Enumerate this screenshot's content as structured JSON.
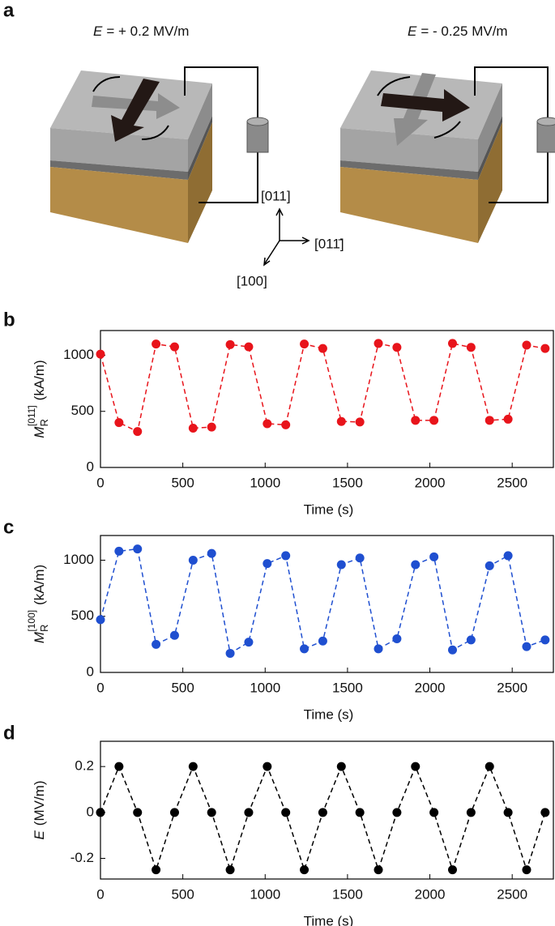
{
  "panel_labels": [
    "a",
    "b",
    "c",
    "d"
  ],
  "panel_a": {
    "left_field": {
      "symbol": "E",
      "text": "= + 0.2 MV/m"
    },
    "right_field": {
      "symbol": "E",
      "text": "= - 0.25 MV/m"
    },
    "axis_labels": [
      "[011]",
      "[011̄]",
      "[100]"
    ]
  },
  "chart_data": [
    {
      "type": "line",
      "line_style": "dashed",
      "marker": "circle",
      "color": "#e8141b",
      "x": [
        0,
        112.5,
        225,
        337.5,
        450,
        562.5,
        675,
        787.5,
        900,
        1012.5,
        1125,
        1237.5,
        1350,
        1462.5,
        1575,
        1687.5,
        1800,
        1912.5,
        2025,
        2137.5,
        2250,
        2362.5,
        2475,
        2587.5,
        2700
      ],
      "values": [
        1010,
        400,
        320,
        1100,
        1075,
        350,
        360,
        1095,
        1075,
        390,
        380,
        1100,
        1060,
        410,
        405,
        1105,
        1070,
        420,
        420,
        1105,
        1070,
        420,
        430,
        1090,
        1060
      ],
      "xlim": [
        0,
        2750
      ],
      "xticks": [
        0,
        500,
        1000,
        1500,
        2000,
        2500
      ],
      "ylim": [
        0,
        1220
      ],
      "yticks": [
        0,
        500,
        1000
      ],
      "xlabel": "Time (s)",
      "ylabel": {
        "symbol": "M",
        "subscript": "R",
        "superscript": "[011̄]",
        "unit": "(kA/m)"
      }
    },
    {
      "type": "line",
      "line_style": "dashed",
      "marker": "circle",
      "color": "#1f4fd0",
      "x": [
        0,
        112.5,
        225,
        337.5,
        450,
        562.5,
        675,
        787.5,
        900,
        1012.5,
        1125,
        1237.5,
        1350,
        1462.5,
        1575,
        1687.5,
        1800,
        1912.5,
        2025,
        2137.5,
        2250,
        2362.5,
        2475,
        2587.5,
        2700
      ],
      "values": [
        470,
        1080,
        1100,
        250,
        330,
        1000,
        1060,
        170,
        270,
        970,
        1040,
        210,
        280,
        960,
        1020,
        210,
        300,
        960,
        1030,
        200,
        290,
        950,
        1040,
        230,
        290
      ],
      "xlim": [
        0,
        2750
      ],
      "xticks": [
        0,
        500,
        1000,
        1500,
        2000,
        2500
      ],
      "ylim": [
        0,
        1220
      ],
      "yticks": [
        0,
        500,
        1000
      ],
      "xlabel": "Time (s)",
      "ylabel": {
        "symbol": "M",
        "subscript": "R",
        "superscript": "[100]",
        "unit": "(kA/m)"
      }
    },
    {
      "type": "line",
      "line_style": "dashed",
      "marker": "circle",
      "color": "#000000",
      "x": [
        0,
        112.5,
        225,
        337.5,
        450,
        562.5,
        675,
        787.5,
        900,
        1012.5,
        1125,
        1237.5,
        1350,
        1462.5,
        1575,
        1687.5,
        1800,
        1912.5,
        2025,
        2137.5,
        2250,
        2362.5,
        2475,
        2587.5,
        2700
      ],
      "values": [
        0,
        0.2,
        0,
        -0.25,
        0,
        0.2,
        0,
        -0.25,
        0,
        0.2,
        0,
        -0.25,
        0,
        0.2,
        0,
        -0.25,
        0,
        0.2,
        0,
        -0.25,
        0,
        0.2,
        0,
        -0.25,
        0
      ],
      "xlim": [
        0,
        2750
      ],
      "xticks": [
        0,
        500,
        1000,
        1500,
        2000,
        2500
      ],
      "ylim": [
        -0.29,
        0.31
      ],
      "yticks": [
        -0.2,
        0,
        0.2
      ],
      "xlabel": "Time (s)",
      "ylabel": {
        "symbol": "E",
        "unit": "(MV/m)"
      }
    }
  ]
}
